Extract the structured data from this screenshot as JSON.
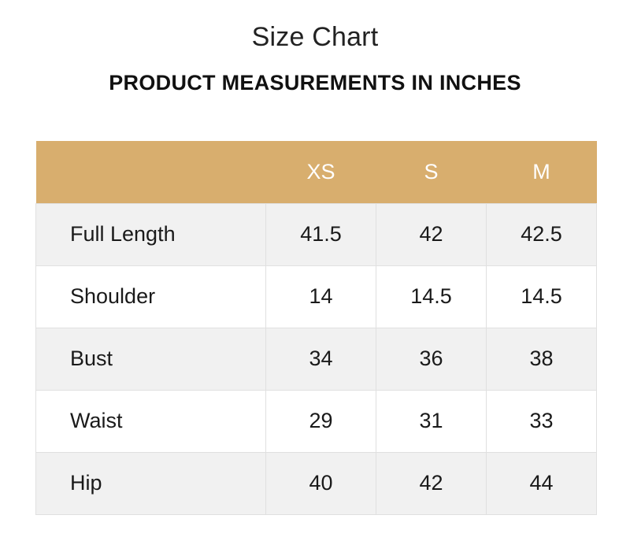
{
  "header": {
    "title": "Size Chart",
    "subtitle": "PRODUCT MEASUREMENTS IN INCHES"
  },
  "table": {
    "columns": [
      "",
      "XS",
      "S",
      "M"
    ],
    "rows": [
      {
        "label": "Full Length",
        "values": [
          "41.5",
          "42",
          "42.5"
        ]
      },
      {
        "label": "Shoulder",
        "values": [
          "14",
          "14.5",
          "14.5"
        ]
      },
      {
        "label": "Bust",
        "values": [
          "34",
          "36",
          "38"
        ]
      },
      {
        "label": "Waist",
        "values": [
          "29",
          "31",
          "33"
        ]
      },
      {
        "label": "Hip",
        "values": [
          "40",
          "42",
          "44"
        ]
      }
    ]
  },
  "colors": {
    "header_bg": "#d8ae6e",
    "header_text": "#ffffff",
    "row_alt_bg": "#f1f1f1",
    "row_bg": "#ffffff",
    "border": "#e0e0e0"
  }
}
